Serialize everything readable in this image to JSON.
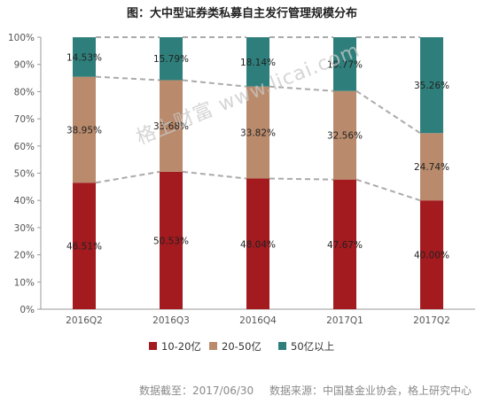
{
  "chart_data": {
    "type": "bar",
    "stacked": true,
    "percent_stacked": true,
    "title": "图：大中型证券类私募自主发行管理规模分布",
    "categories": [
      "2016Q2",
      "2016Q3",
      "2016Q4",
      "2017Q1",
      "2017Q2"
    ],
    "series": [
      {
        "name": "10-20亿",
        "color": "#A31A1F",
        "values": [
          46.51,
          50.53,
          48.04,
          47.67,
          40.0
        ],
        "labels": [
          "46.51%",
          "50.53%",
          "48.04%",
          "47.67%",
          "40.00%"
        ]
      },
      {
        "name": "20-50亿",
        "color": "#B98A6B",
        "values": [
          38.95,
          33.68,
          33.82,
          32.56,
          24.74
        ],
        "labels": [
          "38.95%",
          "33.68%",
          "33.82%",
          "32.56%",
          "24.74%"
        ]
      },
      {
        "name": "50亿以上",
        "color": "#2E7F7B",
        "values": [
          14.53,
          15.79,
          18.14,
          19.77,
          35.26
        ],
        "labels": [
          "14.53%",
          "15.79%",
          "18.14%",
          "19.77%",
          "35.26%"
        ]
      }
    ],
    "ylim": [
      0,
      100
    ],
    "yticks": [
      "0%",
      "10%",
      "20%",
      "30%",
      "40%",
      "50%",
      "60%",
      "70%",
      "80%",
      "90%",
      "100%"
    ],
    "connector_lines": "dashed",
    "legend_position": "bottom"
  },
  "watermark": "格上财富 www.licai.com",
  "footer": {
    "date": "数据截至：2017/06/30",
    "source": "数据来源：中国基金业协会，格上研究中心"
  }
}
